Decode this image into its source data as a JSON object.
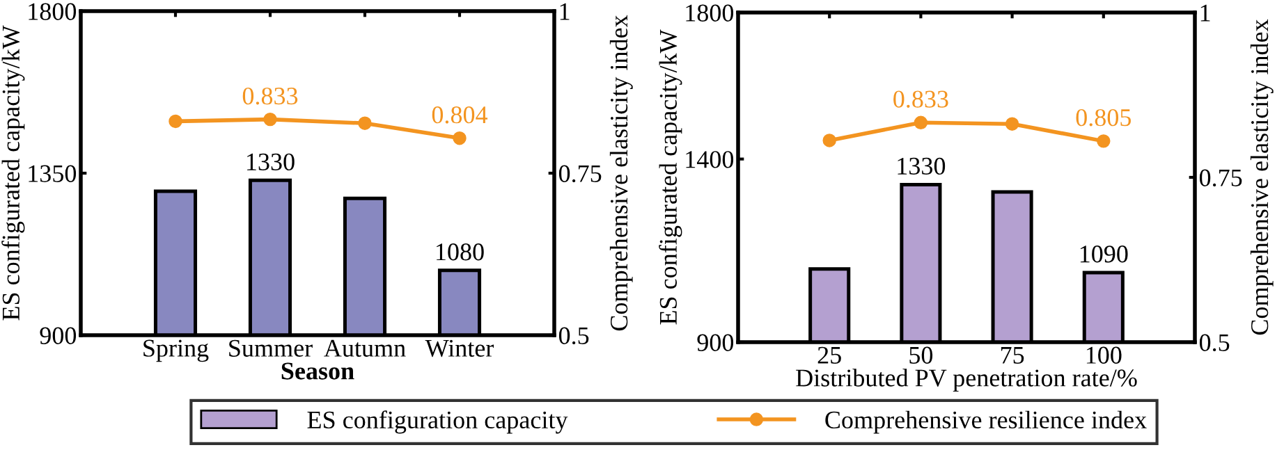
{
  "chart_data": [
    {
      "type": "bar",
      "xlabel": "Season",
      "ylabel": "ES configurated capacity/kW",
      "y2label": "Comprehensive elasticity index",
      "categories": [
        "Spring",
        "Summer",
        "Autumn",
        "Winter"
      ],
      "ylim": [
        900,
        1800
      ],
      "yticks": [
        900,
        1350,
        1800
      ],
      "y2lim": [
        0.5,
        1
      ],
      "y2ticks": [
        0.5,
        0.75,
        1
      ],
      "series": [
        {
          "type": "bar",
          "color": "#8888c0",
          "values": [
            1300,
            1330,
            1280,
            1080
          ],
          "value_labels": [
            null,
            "1330",
            null,
            "1080"
          ]
        },
        {
          "type": "line",
          "axis": "y2",
          "color": "#f39420",
          "values": [
            0.83,
            0.833,
            0.827,
            0.804
          ],
          "value_labels": [
            null,
            "0.833",
            null,
            "0.804"
          ],
          "marker": "circle"
        }
      ],
      "grid": false,
      "legend": false
    },
    {
      "type": "bar",
      "xlabel": "Distributed PV penetration rate/%",
      "ylabel": "ES configurated capacity/kW",
      "y2label": "Comprehensive elasticity index",
      "categories": [
        "25",
        "50",
        "75",
        "100"
      ],
      "ylim": [
        900,
        1800
      ],
      "yticks": [
        900,
        1400,
        1800
      ],
      "y2lim": [
        0.5,
        1
      ],
      "y2ticks": [
        0.5,
        0.75,
        1
      ],
      "series": [
        {
          "type": "bar",
          "name": "ES configuration capacity",
          "color": "#b4a0d0",
          "values": [
            1100,
            1330,
            1310,
            1090
          ],
          "value_labels": [
            null,
            "1330",
            null,
            "1090"
          ]
        },
        {
          "type": "line",
          "axis": "y2",
          "name": "Comprehensive resilience index",
          "color": "#f39420",
          "values": [
            0.806,
            0.833,
            0.831,
            0.805
          ],
          "value_labels": [
            null,
            "0.833",
            null,
            "0.805"
          ],
          "marker": "circle"
        }
      ],
      "grid": false,
      "legend": "bottom"
    }
  ]
}
